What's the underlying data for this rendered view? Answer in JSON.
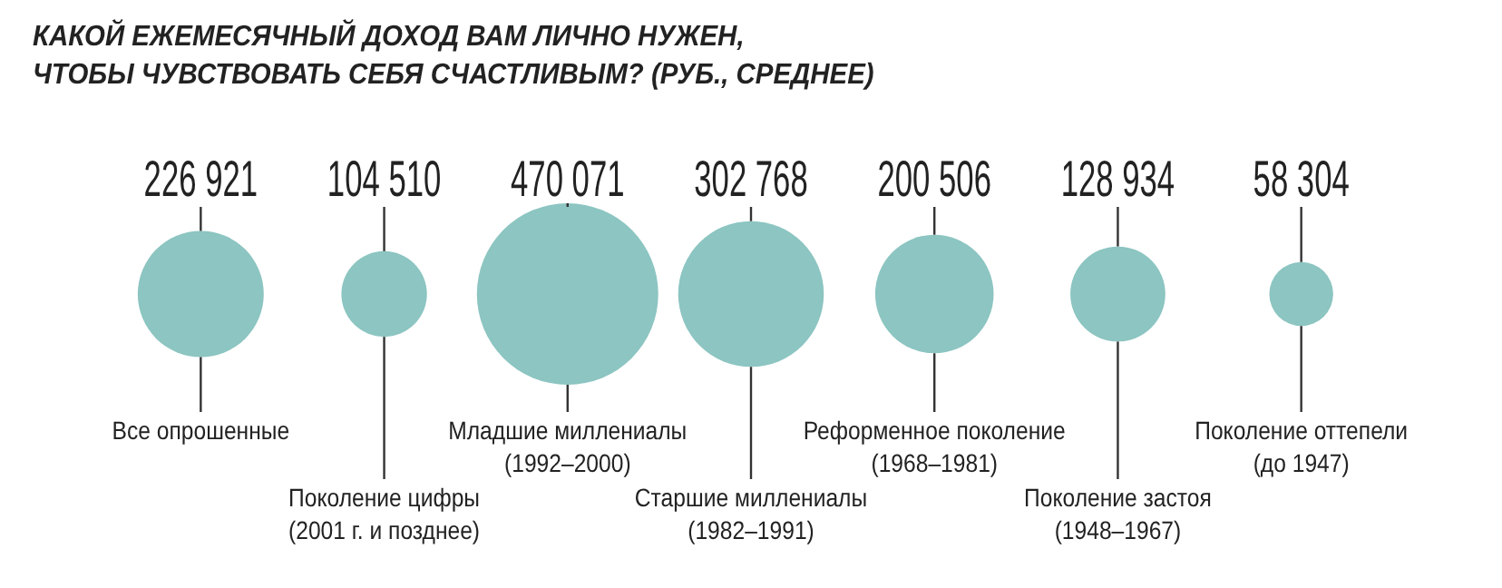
{
  "chart_data": {
    "type": "other",
    "title": "КАКОЙ ЕЖЕМЕСЯЧНЫЙ ДОХОД ВАМ ЛИЧНО НУЖЕН,\nЧТОБЫ ЧУВСТВОВАТЬ СЕБЯ СЧАСТЛИВЫМ? (РУБ., СРЕДНЕЕ)",
    "categories": [
      "Все опрошенные",
      "Поколение цифры\n(2001 г. и позднее)",
      "Младшие миллениалы\n(1992–2000)",
      "Старшие миллениалы\n(1982–1991)",
      "Реформенное поколение\n(1968–1981)",
      "Поколение застоя\n(1948–1967)",
      "Поколение оттепели\n(до 1947)"
    ],
    "values": [
      226921,
      104510,
      470071,
      302768,
      200506,
      128934,
      58304
    ],
    "value_labels": [
      "226 921",
      "104 510",
      "470 071",
      "302 768",
      "200 506",
      "128 934",
      "58 304"
    ],
    "color": "#8cc5c1"
  }
}
